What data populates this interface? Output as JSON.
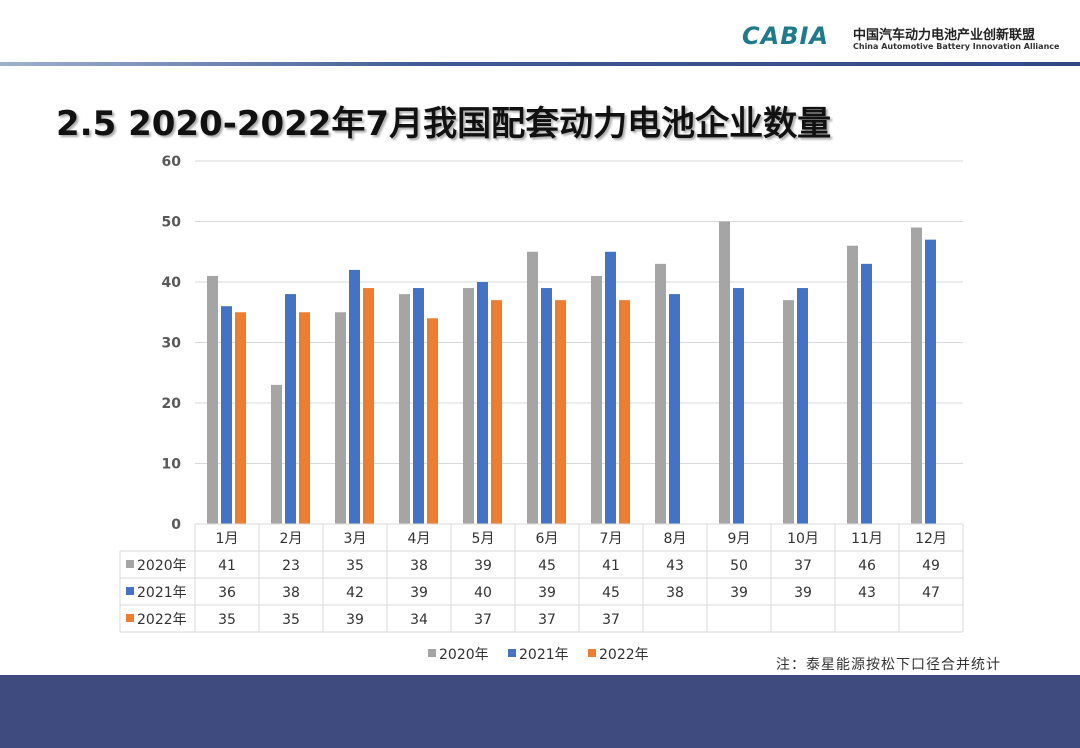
{
  "header": {
    "logo_text": "CABIA",
    "org_cn": "中国汽车动力电池产业创新联盟",
    "org_en": "China Automotive Battery Innovation Alliance"
  },
  "title": "2.5 2020-2022年7月我国配套动力电池企业数量",
  "note": "注：泰星能源按松下口径合并统计",
  "chart_data": {
    "type": "bar",
    "categories": [
      "1月",
      "2月",
      "3月",
      "4月",
      "5月",
      "6月",
      "7月",
      "8月",
      "9月",
      "10月",
      "11月",
      "12月"
    ],
    "series": [
      {
        "name": "2020年",
        "color": "#a5a5a5",
        "values": [
          41,
          23,
          35,
          38,
          39,
          45,
          41,
          43,
          50,
          37,
          46,
          49
        ]
      },
      {
        "name": "2021年",
        "color": "#4472c4",
        "values": [
          36,
          38,
          42,
          39,
          40,
          39,
          45,
          38,
          39,
          39,
          43,
          47
        ]
      },
      {
        "name": "2022年",
        "color": "#ed7d31",
        "values": [
          35,
          35,
          39,
          34,
          37,
          37,
          37,
          null,
          null,
          null,
          null,
          null
        ]
      }
    ],
    "ylim": [
      0,
      60
    ],
    "yticks": [
      0,
      10,
      20,
      30,
      40,
      50,
      60
    ],
    "grid": true,
    "legend": "bottom",
    "data_table": true
  }
}
